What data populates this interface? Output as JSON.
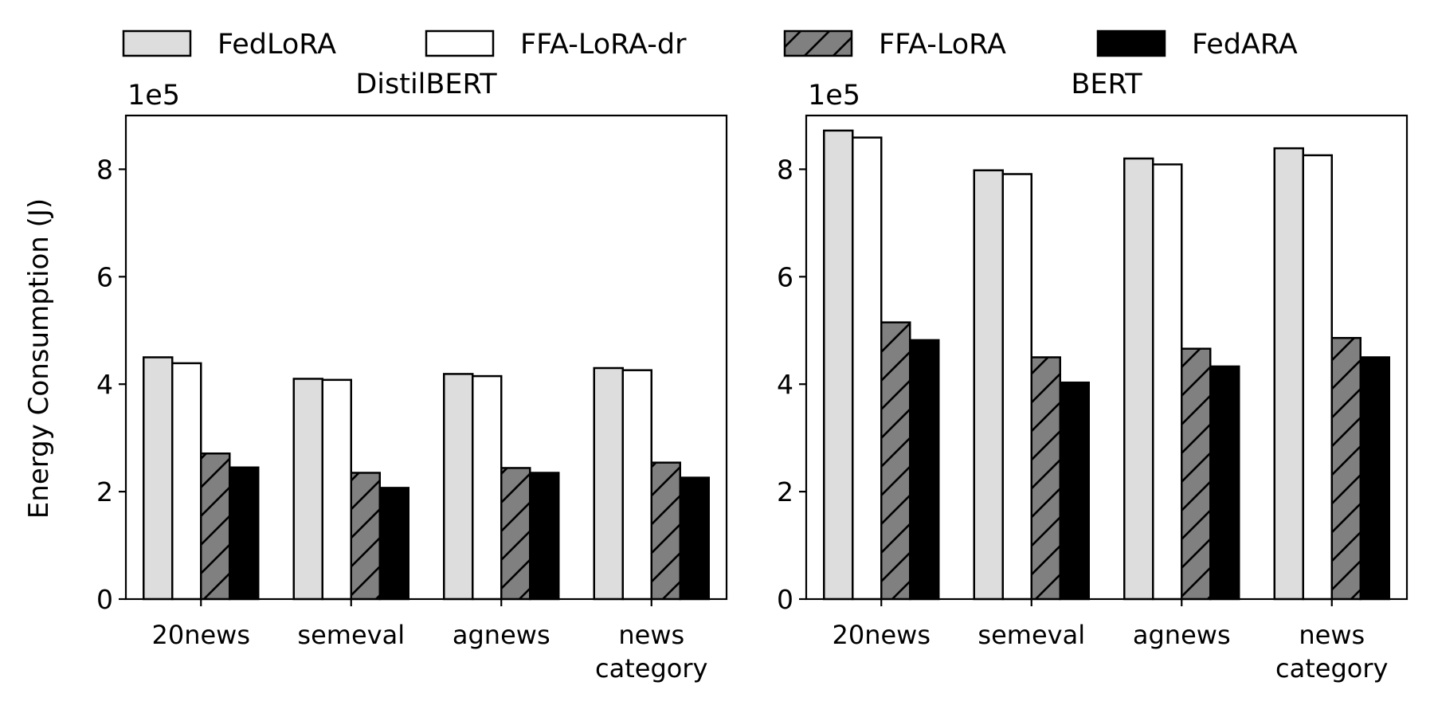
{
  "chart_data": {
    "type": "bar",
    "ylabel": "Energy Consumption (J)",
    "legend_position": "top-center",
    "series_styles": [
      {
        "name": "FedLoRA",
        "fill": "#dddddd",
        "hatch": false
      },
      {
        "name": "FFA-LoRA-dr",
        "fill": "#ffffff",
        "hatch": false
      },
      {
        "name": "FFA-LoRA",
        "fill": "#808080",
        "hatch": true
      },
      {
        "name": "FedARA",
        "fill": "#000000",
        "hatch": false
      }
    ],
    "panels": [
      {
        "title": "DistilBERT",
        "exponent_label": "1e5",
        "categories": [
          "20news",
          "semeval",
          "agnews",
          "news\ncategory"
        ],
        "ylim": [
          0,
          9
        ],
        "yticks": [
          0,
          2,
          4,
          6,
          8
        ],
        "series": [
          {
            "name": "FedLoRA",
            "values": [
              4.5,
              4.1,
              4.19,
              4.3
            ]
          },
          {
            "name": "FFA-LoRA-dr",
            "values": [
              4.39,
              4.08,
              4.15,
              4.26
            ]
          },
          {
            "name": "FFA-LoRA",
            "values": [
              2.71,
              2.35,
              2.44,
              2.54
            ]
          },
          {
            "name": "FedARA",
            "values": [
              2.45,
              2.07,
              2.35,
              2.26
            ]
          }
        ]
      },
      {
        "title": "BERT",
        "exponent_label": "1e5",
        "categories": [
          "20news",
          "semeval",
          "agnews",
          "news\ncategory"
        ],
        "ylim": [
          0,
          9
        ],
        "yticks": [
          0,
          2,
          4,
          6,
          8
        ],
        "series": [
          {
            "name": "FedLoRA",
            "values": [
              8.72,
              7.98,
              8.2,
              8.39
            ]
          },
          {
            "name": "FFA-LoRA-dr",
            "values": [
              8.59,
              7.91,
              8.09,
              8.26
            ]
          },
          {
            "name": "FFA-LoRA",
            "values": [
              5.15,
              4.5,
              4.66,
              4.86
            ]
          },
          {
            "name": "FedARA",
            "values": [
              4.82,
              4.03,
              4.33,
              4.5
            ]
          }
        ]
      }
    ]
  }
}
